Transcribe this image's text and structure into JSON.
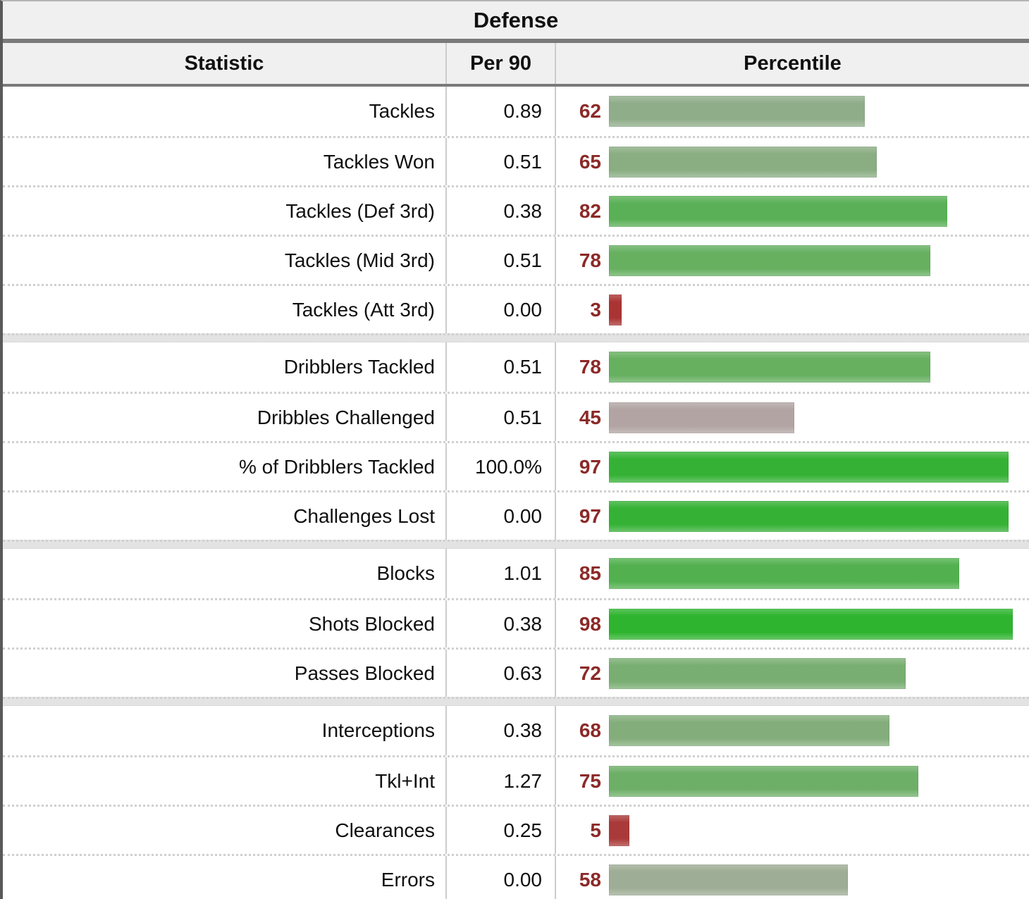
{
  "colors": {
    "percentile_number": "#8b2a28",
    "header_bg": "#f0f0f0",
    "dark_rule": "#7a7a7a",
    "column_rule": "#cccccc",
    "row_dotted_rule": "#d0d0d0",
    "group_separator_bg": "#e3e3e3",
    "low_percentile_red": "#aa3433",
    "mid_percentile_gray": "#b1a4a2",
    "high_percentile_green": "#2eb42e"
  },
  "chart_data": {
    "type": "bar",
    "orientation": "horizontal",
    "title": "Defense",
    "columns": [
      "Statistic",
      "Per 90",
      "Percentile"
    ],
    "value_axis": {
      "label": "Percentile",
      "range": [
        0,
        100
      ]
    },
    "grid": false,
    "groups": [
      {
        "rows": [
          {
            "label": "Tackles",
            "per90": "0.89",
            "percentile": 62,
            "bar_color": "#90ad8a"
          },
          {
            "label": "Tackles Won",
            "per90": "0.51",
            "percentile": 65,
            "bar_color": "#8aad82"
          },
          {
            "label": "Tackles (Def 3rd)",
            "per90": "0.38",
            "percentile": 82,
            "bar_color": "#5ab056"
          },
          {
            "label": "Tackles (Mid 3rd)",
            "per90": "0.51",
            "percentile": 78,
            "bar_color": "#66b060"
          },
          {
            "label": "Tackles (Att 3rd)",
            "per90": "0.00",
            "percentile": 3,
            "bar_color": "#aa3433"
          }
        ]
      },
      {
        "rows": [
          {
            "label": "Dribblers Tackled",
            "per90": "0.51",
            "percentile": 78,
            "bar_color": "#66b060"
          },
          {
            "label": "Dribbles Challenged",
            "per90": "0.51",
            "percentile": 45,
            "bar_color": "#b1a4a2"
          },
          {
            "label": "% of Dribblers Tackled",
            "per90": "100.0%",
            "percentile": 97,
            "bar_color": "#35b235"
          },
          {
            "label": "Challenges Lost",
            "per90": "0.00",
            "percentile": 97,
            "bar_color": "#35b235"
          }
        ]
      },
      {
        "rows": [
          {
            "label": "Blocks",
            "per90": "1.01",
            "percentile": 85,
            "bar_color": "#52b14e"
          },
          {
            "label": "Shots Blocked",
            "per90": "0.38",
            "percentile": 98,
            "bar_color": "#2eb42e"
          },
          {
            "label": "Passes Blocked",
            "per90": "0.63",
            "percentile": 72,
            "bar_color": "#79ae72"
          }
        ]
      },
      {
        "rows": [
          {
            "label": "Interceptions",
            "per90": "0.38",
            "percentile": 68,
            "bar_color": "#83ae7b"
          },
          {
            "label": "Tkl+Int",
            "per90": "1.27",
            "percentile": 75,
            "bar_color": "#6eaf68"
          },
          {
            "label": "Clearances",
            "per90": "0.25",
            "percentile": 5,
            "bar_color": "#aa3a39"
          },
          {
            "label": "Errors",
            "per90": "0.00",
            "percentile": 58,
            "bar_color": "#9ead95"
          }
        ]
      }
    ]
  }
}
